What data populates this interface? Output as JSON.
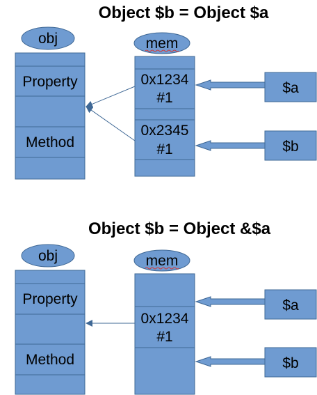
{
  "colors": {
    "fill": "#6f9bd1",
    "stroke": "#3f6895",
    "text": "#000000"
  },
  "panel_top": {
    "title": "Object $b = Object $a",
    "obj_label": "obj",
    "mem_label": "mem",
    "obj_rows": [
      "",
      "Property",
      "",
      "Method",
      ""
    ],
    "mem_cells": [
      {
        "line1": "0x1234",
        "line2": "#1"
      },
      {
        "line1": "0x2345",
        "line2": "#1"
      }
    ],
    "var_a": "$a",
    "var_b": "$b"
  },
  "panel_bottom": {
    "title": "Object $b = Object &$a",
    "obj_label": "obj",
    "mem_label": "mem",
    "obj_rows": [
      "",
      "Property",
      "",
      "Method",
      ""
    ],
    "mem_cells": [
      {
        "line1": "0x1234",
        "line2": "#1"
      }
    ],
    "var_a": "$a",
    "var_b": "$b"
  }
}
